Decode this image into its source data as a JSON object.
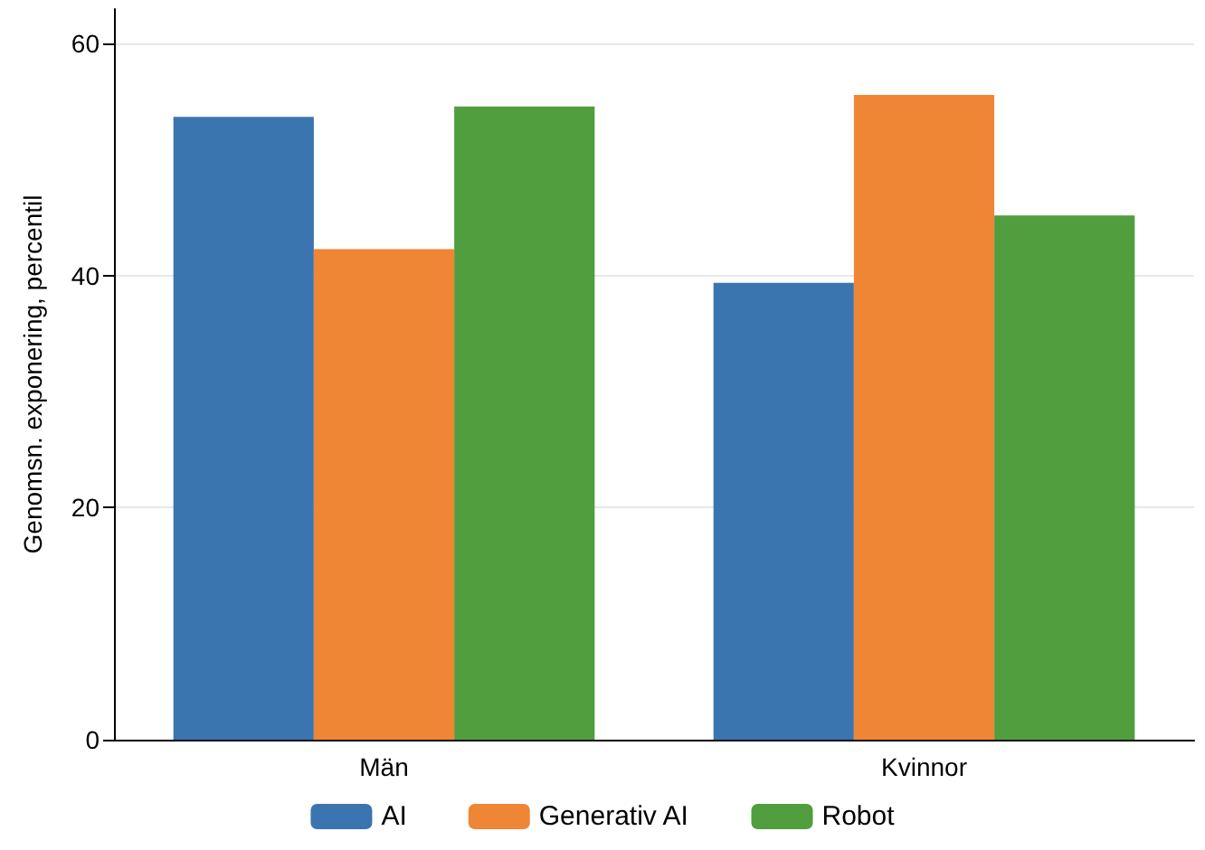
{
  "chart_data": {
    "type": "bar",
    "ylabel": "Genomsn. exponering, percentil",
    "categories": [
      "Män",
      "Kvinnor"
    ],
    "series": [
      {
        "name": "AI",
        "color": "#3b75af",
        "values": [
          53.7,
          39.4
        ]
      },
      {
        "name": "Generativ AI",
        "color": "#ef8636",
        "values": [
          42.3,
          55.6
        ]
      },
      {
        "name": "Robot",
        "color": "#519e3e",
        "values": [
          54.6,
          45.2
        ]
      }
    ],
    "ylim": [
      0,
      63
    ],
    "yticks": [
      0,
      20,
      40,
      60
    ],
    "grid": "y",
    "legend": "bottom"
  }
}
